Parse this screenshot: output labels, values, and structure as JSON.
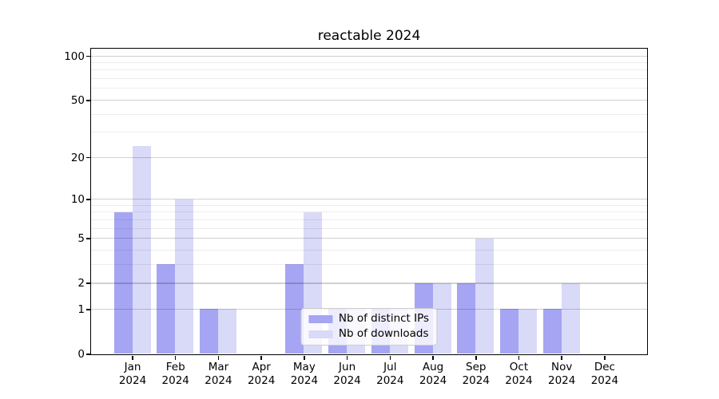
{
  "title": "reactable 2024",
  "chart_data": {
    "type": "bar",
    "title": "reactable 2024",
    "categories": [
      "Jan",
      "Feb",
      "Mar",
      "Apr",
      "May",
      "Jun",
      "Jul",
      "Aug",
      "Sep",
      "Oct",
      "Nov",
      "Dec"
    ],
    "year_line": "2024",
    "series": [
      {
        "name": "Nb of distinct IPs",
        "color": "#a5a5f3",
        "values": [
          8,
          3,
          1,
          0,
          3,
          1,
          1,
          2,
          2,
          1,
          1,
          0
        ]
      },
      {
        "name": "Nb of downloads",
        "color": "#d9d9f8",
        "values": [
          24,
          10,
          1,
          0,
          8,
          1,
          1,
          2,
          5,
          1,
          2,
          0
        ]
      }
    ],
    "xlabel": "",
    "ylabel": "",
    "y_axis": {
      "scale": "log1p",
      "major_ticks": [
        0,
        1,
        2,
        5,
        10,
        20,
        50,
        100
      ],
      "minor_gridlines": [
        3,
        4,
        6,
        7,
        8,
        9,
        30,
        40,
        60,
        70,
        80,
        90
      ],
      "ylim": [
        0,
        113
      ]
    },
    "grid": "on",
    "legend_position": "lower center"
  }
}
